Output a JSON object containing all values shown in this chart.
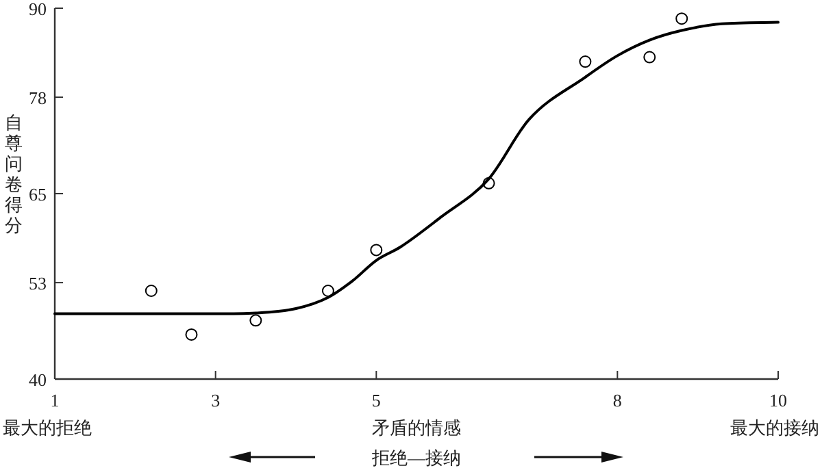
{
  "chart_data": {
    "type": "scatter",
    "ylabel": "自尊问卷得分",
    "xlim": [
      1,
      10
    ],
    "xticks": [
      1,
      3,
      5,
      8,
      10
    ],
    "ylim": [
      40,
      90
    ],
    "yticks": [
      40,
      53,
      65,
      78,
      90
    ],
    "grid": false,
    "series": [
      {
        "type": "scatter",
        "color": "#000000",
        "marker": "circle",
        "x": [
          2.2,
          2.7,
          3.5,
          4.4,
          5.0,
          6.4,
          7.6,
          8.4,
          8.8
        ],
        "values": [
          51.9,
          46.0,
          47.9,
          51.9,
          57.4,
          66.4,
          82.8,
          83.4,
          88.6
        ]
      },
      {
        "type": "line",
        "color": "#000000",
        "marker": "none",
        "line_style": "solid",
        "x": [
          1.0,
          3.0,
          3.5,
          4.0,
          4.4,
          4.7,
          5.0,
          5.3,
          5.8,
          6.4,
          6.9,
          7.6,
          8.0,
          8.4,
          8.8,
          9.3,
          10.0
        ],
        "values": [
          48.8,
          48.8,
          48.9,
          49.5,
          51.0,
          53.2,
          56.0,
          57.8,
          61.8,
          67.0,
          75.0,
          80.7,
          83.6,
          85.7,
          87.0,
          87.9,
          88.1
        ]
      }
    ],
    "annotations": [
      "最大的拒绝",
      "矛盾的情感",
      "最大的接纳",
      "拒绝—接纳"
    ]
  }
}
